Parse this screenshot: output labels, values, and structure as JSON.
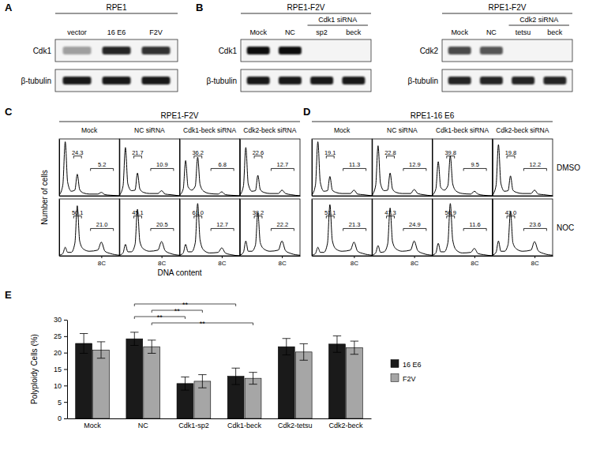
{
  "panel_labels": [
    "A",
    "B",
    "C",
    "D",
    "E"
  ],
  "blots": [
    {
      "title": "RPE1",
      "lanes": [
        "vector",
        "16 E6",
        "F2V"
      ],
      "rows": [
        {
          "label": "Cdk1",
          "intensity": [
            0.35,
            0.85,
            0.8
          ]
        },
        {
          "label": "β-tubulin",
          "intensity": [
            0.9,
            0.9,
            0.9
          ]
        }
      ]
    },
    {
      "title": "RPE1-F2V",
      "lanes": [
        "Mock",
        "NC",
        {
          "group": "Cdk1 siRNA",
          "lanes": [
            "sp2",
            "beck"
          ]
        }
      ],
      "rows": [
        {
          "label": "Cdk1",
          "intensity": [
            0.95,
            0.95,
            0,
            0
          ]
        },
        {
          "label": "β-tubulin",
          "intensity": [
            0.9,
            0.9,
            0.9,
            0.9
          ]
        }
      ]
    },
    {
      "title": "RPE1-F2V",
      "lanes": [
        "Mock",
        "NC",
        {
          "group": "Cdk2 siRNA",
          "lanes": [
            "tetsu",
            "beck"
          ]
        }
      ],
      "rows": [
        {
          "label": "Cdk2",
          "intensity": [
            0.7,
            0.65,
            0,
            0
          ]
        },
        {
          "label": "β-tubulin",
          "intensity": [
            0.85,
            0.85,
            0.85,
            0.85
          ]
        }
      ]
    }
  ],
  "flow": {
    "panels": [
      {
        "title": "RPE1-F2V",
        "columns": [
          "Mock",
          "NC siRNA",
          "Cdk1-beck siRNA",
          "Cdk2-beck siRNA"
        ]
      },
      {
        "title": "RPE1-16 E6",
        "columns": [
          "Mock",
          "NC siRNA",
          "Cdk1-beck siRNA",
          "Cdk2-beck siRNA"
        ]
      }
    ],
    "row_labels": [
      "DMSO",
      "NOC"
    ],
    "y_label": "Number of cells",
    "x_label": "DNA content"
  },
  "chart_data": [
    {
      "type": "line",
      "color": "#000000",
      "x": [
        1,
        1.6,
        2,
        2.4,
        3,
        3.6,
        4,
        4.4,
        5,
        6,
        7.4,
        8,
        8.6,
        9.5,
        11
      ],
      "values": [
        1,
        19,
        95,
        24,
        8,
        10,
        38,
        11,
        5,
        3,
        3,
        6,
        2,
        1,
        0
      ],
      "xlim": [
        1,
        11
      ],
      "ylim": [
        0,
        100
      ],
      "xticks": [],
      "yticks": [],
      "tick_labels": false,
      "gates": [
        {
          "range": [
            3.4,
            4.7
          ],
          "value": 24.3
        },
        {
          "range": [
            6.2,
            10
          ],
          "value": 5.2
        }
      ]
    },
    {
      "type": "line",
      "color": "#000000",
      "x": [
        1,
        1.6,
        2,
        2.4,
        3,
        3.6,
        4,
        4.4,
        5,
        6,
        7.4,
        8,
        8.6,
        9.5,
        11
      ],
      "values": [
        1,
        17,
        85,
        21,
        9,
        10,
        40,
        12,
        6,
        4,
        4,
        9,
        3,
        2,
        0
      ],
      "xlim": [
        1,
        11
      ],
      "ylim": [
        0,
        100
      ],
      "xticks": [],
      "yticks": [],
      "tick_labels": false,
      "gates": [
        {
          "range": [
            3.4,
            4.7
          ],
          "value": 21.7
        },
        {
          "range": [
            6.2,
            10
          ],
          "value": 10.9
        }
      ]
    },
    {
      "type": "line",
      "color": "#000000",
      "x": [
        1,
        1.6,
        2,
        2.4,
        3,
        3.6,
        4,
        4.4,
        5,
        6,
        7.4,
        8,
        8.6,
        9.5,
        11
      ],
      "values": [
        1,
        12,
        62,
        16,
        10,
        17,
        68,
        20,
        8,
        4,
        3,
        7,
        2,
        1,
        0
      ],
      "xlim": [
        1,
        11
      ],
      "ylim": [
        0,
        100
      ],
      "xticks": [],
      "yticks": [],
      "tick_labels": false,
      "gates": [
        {
          "range": [
            3.4,
            4.7
          ],
          "value": 36.2
        },
        {
          "range": [
            6.2,
            10
          ],
          "value": 6.8
        }
      ]
    },
    {
      "type": "line",
      "color": "#000000",
      "x": [
        1,
        1.6,
        2,
        2.4,
        3,
        3.6,
        4,
        4.4,
        5,
        6,
        7.4,
        8,
        8.6,
        9.5,
        11
      ],
      "values": [
        1,
        17,
        85,
        21,
        8,
        9,
        36,
        11,
        6,
        4,
        4,
        10,
        4,
        2,
        0
      ],
      "xlim": [
        1,
        11
      ],
      "ylim": [
        0,
        100
      ],
      "xticks": [],
      "yticks": [],
      "tick_labels": false,
      "gates": [
        {
          "range": [
            3.4,
            4.7
          ],
          "value": 22.6
        },
        {
          "range": [
            6.2,
            10
          ],
          "value": 12.7
        }
      ]
    },
    {
      "type": "line",
      "color": "#000000",
      "x": [
        1,
        1.6,
        2,
        2.4,
        3,
        3.6,
        4,
        4.4,
        5,
        6,
        7.4,
        8,
        8.6,
        9.5,
        11
      ],
      "values": [
        1,
        4,
        15,
        6,
        6,
        22,
        88,
        26,
        12,
        8,
        10,
        24,
        8,
        4,
        1
      ],
      "xlim": [
        1,
        11
      ],
      "ylim": [
        0,
        100
      ],
      "xticks": [
        {
          "value": 8,
          "label": "8C"
        }
      ],
      "yticks": [],
      "tick_labels": "x",
      "gates": [
        {
          "range": [
            3.4,
            4.7
          ],
          "value": 50.1
        },
        {
          "range": [
            6.2,
            10
          ],
          "value": 21.0
        }
      ]
    },
    {
      "type": "line",
      "color": "#000000",
      "x": [
        1,
        1.6,
        2,
        2.4,
        3,
        3.6,
        4,
        4.4,
        5,
        6,
        7.4,
        8,
        8.6,
        9.5,
        11
      ],
      "values": [
        1,
        5,
        20,
        7,
        7,
        20,
        82,
        25,
        12,
        8,
        10,
        25,
        9,
        4,
        1
      ],
      "xlim": [
        1,
        11
      ],
      "ylim": [
        0,
        100
      ],
      "xticks": [
        {
          "value": 8,
          "label": "8C"
        }
      ],
      "yticks": [],
      "tick_labels": "x",
      "gates": [
        {
          "range": [
            3.4,
            4.7
          ],
          "value": 45.1
        },
        {
          "range": [
            6.2,
            10
          ],
          "value": 20.5
        }
      ]
    },
    {
      "type": "line",
      "color": "#000000",
      "x": [
        1,
        1.6,
        2,
        2.4,
        3,
        3.6,
        4,
        4.4,
        5,
        6,
        7.4,
        8,
        8.6,
        9.5,
        11
      ],
      "values": [
        1,
        5,
        20,
        7,
        7,
        23,
        92,
        28,
        10,
        5,
        6,
        14,
        5,
        2,
        0
      ],
      "xlim": [
        1,
        11
      ],
      "ylim": [
        0,
        100
      ],
      "xticks": [
        {
          "value": 8,
          "label": "8C"
        }
      ],
      "yticks": [],
      "tick_labels": "x",
      "gates": [
        {
          "range": [
            3.4,
            4.7
          ],
          "value": 61.0
        },
        {
          "range": [
            6.2,
            10
          ],
          "value": 12.7
        }
      ]
    },
    {
      "type": "line",
      "color": "#000000",
      "x": [
        1,
        1.6,
        2,
        2.4,
        3,
        3.6,
        4,
        4.4,
        5,
        6,
        7.4,
        8,
        8.6,
        9.5,
        11
      ],
      "values": [
        1,
        6,
        26,
        8,
        8,
        19,
        76,
        23,
        12,
        8,
        10,
        26,
        9,
        4,
        1
      ],
      "xlim": [
        1,
        11
      ],
      "ylim": [
        0,
        100
      ],
      "xticks": [
        {
          "value": 8,
          "label": "8C"
        }
      ],
      "yticks": [],
      "tick_labels": "x",
      "gates": [
        {
          "range": [
            3.4,
            4.7
          ],
          "value": 38.2
        },
        {
          "range": [
            6.2,
            10
          ],
          "value": 22.2
        }
      ]
    },
    {
      "type": "line",
      "color": "#000000",
      "x": [
        1,
        1.6,
        2,
        2.4,
        3,
        3.6,
        4,
        4.4,
        5,
        6,
        7.4,
        8,
        8.6,
        9.5,
        11
      ],
      "values": [
        1,
        19,
        95,
        24,
        8,
        9,
        34,
        10,
        6,
        4,
        4,
        10,
        3,
        2,
        0
      ],
      "xlim": [
        1,
        11
      ],
      "ylim": [
        0,
        100
      ],
      "xticks": [],
      "yticks": [],
      "tick_labels": false,
      "gates": [
        {
          "range": [
            3.4,
            4.7
          ],
          "value": 19.1
        },
        {
          "range": [
            6.2,
            10
          ],
          "value": 11.3
        }
      ]
    },
    {
      "type": "line",
      "color": "#000000",
      "x": [
        1,
        1.6,
        2,
        2.4,
        3,
        3.6,
        4,
        4.4,
        5,
        6,
        7.4,
        8,
        8.6,
        9.5,
        11
      ],
      "values": [
        1,
        18,
        88,
        22,
        9,
        10,
        40,
        12,
        6,
        4,
        4,
        11,
        4,
        2,
        0
      ],
      "xlim": [
        1,
        11
      ],
      "ylim": [
        0,
        100
      ],
      "xticks": [],
      "yticks": [],
      "tick_labels": false,
      "gates": [
        {
          "range": [
            3.4,
            4.7
          ],
          "value": 22.8
        },
        {
          "range": [
            6.2,
            10
          ],
          "value": 12.9
        }
      ]
    },
    {
      "type": "line",
      "color": "#000000",
      "x": [
        1,
        1.6,
        2,
        2.4,
        3,
        3.6,
        4,
        4.4,
        5,
        6,
        7.4,
        8,
        8.6,
        9.5,
        11
      ],
      "values": [
        1,
        12,
        60,
        15,
        10,
        18,
        70,
        21,
        8,
        4,
        3,
        8,
        3,
        1,
        0
      ],
      "xlim": [
        1,
        11
      ],
      "ylim": [
        0,
        100
      ],
      "xticks": [],
      "yticks": [],
      "tick_labels": false,
      "gates": [
        {
          "range": [
            3.4,
            4.7
          ],
          "value": 39.8
        },
        {
          "range": [
            6.2,
            10
          ],
          "value": 9.5
        }
      ]
    },
    {
      "type": "line",
      "color": "#000000",
      "x": [
        1,
        1.6,
        2,
        2.4,
        3,
        3.6,
        4,
        4.4,
        5,
        6,
        7.4,
        8,
        8.6,
        9.5,
        11
      ],
      "values": [
        1,
        18,
        90,
        22,
        8,
        9,
        35,
        10,
        6,
        4,
        4,
        10,
        3,
        2,
        0
      ],
      "xlim": [
        1,
        11
      ],
      "ylim": [
        0,
        100
      ],
      "xticks": [],
      "yticks": [],
      "tick_labels": false,
      "gates": [
        {
          "range": [
            3.4,
            4.7
          ],
          "value": 19.8
        },
        {
          "range": [
            6.2,
            10
          ],
          "value": 12.2
        }
      ]
    },
    {
      "type": "line",
      "color": "#000000",
      "x": [
        1,
        1.6,
        2,
        2.4,
        3,
        3.6,
        4,
        4.4,
        5,
        6,
        7.4,
        8,
        8.6,
        9.5,
        11
      ],
      "values": [
        1,
        4,
        15,
        6,
        6,
        22,
        90,
        27,
        12,
        8,
        10,
        24,
        8,
        4,
        1
      ],
      "xlim": [
        1,
        11
      ],
      "ylim": [
        0,
        100
      ],
      "xticks": [
        {
          "value": 8,
          "label": "8C"
        }
      ],
      "yticks": [],
      "tick_labels": "x",
      "gates": [
        {
          "range": [
            3.4,
            4.7
          ],
          "value": 51.1
        },
        {
          "range": [
            6.2,
            10
          ],
          "value": 21.3
        }
      ]
    },
    {
      "type": "line",
      "color": "#000000",
      "x": [
        1,
        1.6,
        2,
        2.4,
        3,
        3.6,
        4,
        4.4,
        5,
        6,
        7.4,
        8,
        8.6,
        9.5,
        11
      ],
      "values": [
        1,
        5,
        18,
        6,
        7,
        21,
        84,
        25,
        12,
        8,
        10,
        26,
        9,
        4,
        1
      ],
      "xlim": [
        1,
        11
      ],
      "ylim": [
        0,
        100
      ],
      "xticks": [
        {
          "value": 8,
          "label": "8C"
        }
      ],
      "yticks": [],
      "tick_labels": "x",
      "gates": [
        {
          "range": [
            3.4,
            4.7
          ],
          "value": 47.3
        },
        {
          "range": [
            6.2,
            10
          ],
          "value": 24.9
        }
      ]
    },
    {
      "type": "line",
      "color": "#000000",
      "x": [
        1,
        1.6,
        2,
        2.4,
        3,
        3.6,
        4,
        4.4,
        5,
        6,
        7.4,
        8,
        8.6,
        9.5,
        11
      ],
      "values": [
        1,
        5,
        22,
        7,
        7,
        23,
        92,
        28,
        10,
        5,
        6,
        13,
        4,
        2,
        0
      ],
      "xlim": [
        1,
        11
      ],
      "ylim": [
        0,
        100
      ],
      "xticks": [
        {
          "value": 8,
          "label": "8C"
        }
      ],
      "yticks": [],
      "tick_labels": "x",
      "gates": [
        {
          "range": [
            3.4,
            4.7
          ],
          "value": 56.9
        },
        {
          "range": [
            6.2,
            10
          ],
          "value": 11.6
        }
      ]
    },
    {
      "type": "line",
      "color": "#000000",
      "x": [
        1,
        1.6,
        2,
        2.4,
        3,
        3.6,
        4,
        4.4,
        5,
        6,
        7.4,
        8,
        8.6,
        9.5,
        11
      ],
      "values": [
        1,
        6,
        26,
        8,
        8,
        20,
        78,
        23,
        12,
        8,
        10,
        25,
        9,
        4,
        1
      ],
      "xlim": [
        1,
        11
      ],
      "ylim": [
        0,
        100
      ],
      "xticks": [
        {
          "value": 8,
          "label": "8C"
        }
      ],
      "yticks": [],
      "tick_labels": "x",
      "gates": [
        {
          "range": [
            3.4,
            4.7
          ],
          "value": 43.0
        },
        {
          "range": [
            6.2,
            10
          ],
          "value": 23.6
        }
      ]
    },
    {
      "type": "bar",
      "categories": [
        "Mock",
        "NC",
        "Cdk1-sp2",
        "Cdk1-beck",
        "Cdk2-tetsu",
        "Cdk2-beck"
      ],
      "series": [
        {
          "name": "16 E6",
          "color": "#1a1a1a",
          "values": [
            22.8,
            24.2,
            10.6,
            12.8,
            21.8,
            22.6
          ],
          "errors": [
            3.0,
            2.0,
            2.0,
            2.5,
            2.5,
            2.5
          ]
        },
        {
          "name": "F2V",
          "color": "#a6a6a6",
          "values": [
            20.8,
            21.8,
            11.3,
            12.2,
            20.2,
            21.5
          ],
          "errors": [
            2.5,
            2.0,
            2.0,
            1.8,
            2.5,
            2.0
          ]
        }
      ],
      "ylim": [
        0,
        30
      ],
      "yticks": [
        0,
        5,
        10,
        15,
        20,
        25,
        30
      ],
      "y_label": "Polyploidy Cells (%)",
      "legend": "right",
      "grid": false,
      "annotations": [
        {
          "text": "**",
          "from": "NC",
          "to": "Cdk1-beck"
        },
        {
          "text": "**",
          "from": "NC",
          "to": "Cdk1-sp2"
        },
        {
          "text": "**",
          "from": "NC",
          "to": "Cdk1-sp2"
        },
        {
          "text": "**",
          "from": "NC",
          "to": "Cdk1-beck"
        }
      ]
    }
  ]
}
